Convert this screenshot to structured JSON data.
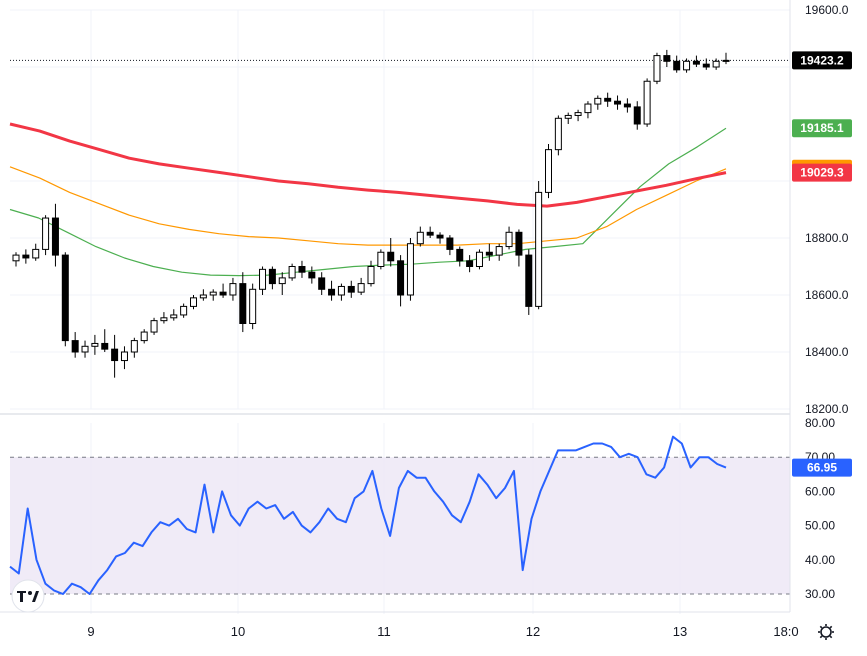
{
  "chart_data": [
    {
      "type": "candlestick",
      "price_axis": {
        "ylim": [
          18200,
          19600
        ],
        "ticks": [
          "19600.0",
          "18800.0",
          "18600.0",
          "18400.0",
          "18200.0"
        ]
      },
      "x_axis": {
        "ticks": [
          "9",
          "10",
          "11",
          "12",
          "13",
          "18:0"
        ]
      },
      "last_price": {
        "value": 19423.2,
        "label": "19423.2",
        "color": "#000000"
      },
      "series": [
        {
          "label": "19185.1",
          "value": 19185.1,
          "color": "#4caf50",
          "values": [
            18900,
            18870,
            18820,
            18770,
            18730,
            18700,
            18680,
            18670,
            18668,
            18670,
            18680,
            18690,
            18700,
            18705,
            18708,
            18715,
            18720,
            18740,
            18760,
            18770,
            18780,
            18880,
            18980,
            19060,
            19120,
            19185.1
          ]
        },
        {
          "label": "19042.9",
          "value": 19042.9,
          "color": "#ff9800",
          "values": [
            19050,
            19010,
            18960,
            18920,
            18880,
            18850,
            18830,
            18815,
            18805,
            18800,
            18790,
            18780,
            18775,
            18775,
            18775,
            18775,
            18780,
            18780,
            18790,
            18800,
            18840,
            18900,
            18950,
            19000,
            19042.9
          ]
        },
        {
          "label": "19029.3",
          "value": 19029.3,
          "color": "#f23645",
          "values": [
            19200,
            19175,
            19140,
            19110,
            19080,
            19060,
            19045,
            19030,
            19015,
            19000,
            18990,
            18978,
            18968,
            18960,
            18950,
            18940,
            18930,
            18918,
            18912,
            18925,
            18945,
            18965,
            18985,
            19008,
            19029.3
          ]
        }
      ],
      "candles": [
        [
          18720,
          18750,
          18700,
          18740
        ],
        [
          18740,
          18760,
          18710,
          18730
        ],
        [
          18730,
          18780,
          18720,
          18760
        ],
        [
          18760,
          18880,
          18740,
          18870
        ],
        [
          18870,
          18920,
          18700,
          18740
        ],
        [
          18740,
          18750,
          18420,
          18440
        ],
        [
          18440,
          18470,
          18380,
          18400
        ],
        [
          18400,
          18440,
          18380,
          18420
        ],
        [
          18420,
          18460,
          18390,
          18430
        ],
        [
          18430,
          18480,
          18400,
          18410
        ],
        [
          18410,
          18460,
          18310,
          18370
        ],
        [
          18370,
          18420,
          18340,
          18400
        ],
        [
          18400,
          18450,
          18380,
          18440
        ],
        [
          18440,
          18480,
          18430,
          18470
        ],
        [
          18470,
          18520,
          18460,
          18510
        ],
        [
          18510,
          18540,
          18500,
          18520
        ],
        [
          18520,
          18550,
          18510,
          18530
        ],
        [
          18530,
          18570,
          18520,
          18560
        ],
        [
          18560,
          18600,
          18550,
          18590
        ],
        [
          18590,
          18620,
          18580,
          18600
        ],
        [
          18600,
          18620,
          18580,
          18610
        ],
        [
          18610,
          18640,
          18590,
          18600
        ],
        [
          18600,
          18660,
          18580,
          18640
        ],
        [
          18640,
          18680,
          18470,
          18500
        ],
        [
          18500,
          18640,
          18480,
          18620
        ],
        [
          18620,
          18700,
          18600,
          18690
        ],
        [
          18690,
          18700,
          18620,
          18640
        ],
        [
          18640,
          18680,
          18600,
          18660
        ],
        [
          18660,
          18710,
          18650,
          18700
        ],
        [
          18700,
          18720,
          18660,
          18680
        ],
        [
          18680,
          18700,
          18640,
          18660
        ],
        [
          18660,
          18680,
          18600,
          18620
        ],
        [
          18620,
          18650,
          18580,
          18600
        ],
        [
          18600,
          18640,
          18580,
          18630
        ],
        [
          18630,
          18650,
          18590,
          18610
        ],
        [
          18610,
          18660,
          18600,
          18640
        ],
        [
          18640,
          18720,
          18630,
          18700
        ],
        [
          18700,
          18760,
          18690,
          18750
        ],
        [
          18750,
          18800,
          18700,
          18720
        ],
        [
          18720,
          18740,
          18560,
          18600
        ],
        [
          18600,
          18800,
          18580,
          18780
        ],
        [
          18780,
          18840,
          18770,
          18820
        ],
        [
          18820,
          18840,
          18800,
          18810
        ],
        [
          18810,
          18820,
          18780,
          18800
        ],
        [
          18800,
          18810,
          18740,
          18760
        ],
        [
          18760,
          18770,
          18700,
          18720
        ],
        [
          18720,
          18740,
          18680,
          18700
        ],
        [
          18700,
          18760,
          18690,
          18750
        ],
        [
          18750,
          18780,
          18720,
          18740
        ],
        [
          18740,
          18780,
          18720,
          18770
        ],
        [
          18770,
          18840,
          18760,
          18820
        ],
        [
          18820,
          18830,
          18700,
          18740
        ],
        [
          18740,
          18760,
          18530,
          18560
        ],
        [
          18560,
          19000,
          18550,
          18960
        ],
        [
          18960,
          19130,
          18940,
          19110
        ],
        [
          19110,
          19230,
          19090,
          19220
        ],
        [
          19220,
          19240,
          19200,
          19230
        ],
        [
          19230,
          19250,
          19210,
          19240
        ],
        [
          19240,
          19280,
          19220,
          19270
        ],
        [
          19270,
          19300,
          19250,
          19290
        ],
        [
          19290,
          19310,
          19260,
          19280
        ],
        [
          19280,
          19300,
          19250,
          19270
        ],
        [
          19270,
          19290,
          19240,
          19260
        ],
        [
          19260,
          19280,
          19180,
          19200
        ],
        [
          19200,
          19360,
          19190,
          19350
        ],
        [
          19350,
          19450,
          19340,
          19440
        ],
        [
          19440,
          19460,
          19400,
          19420
        ],
        [
          19420,
          19440,
          19380,
          19390
        ],
        [
          19390,
          19430,
          19380,
          19420
        ],
        [
          19420,
          19440,
          19400,
          19410
        ],
        [
          19410,
          19430,
          19390,
          19400
        ],
        [
          19400,
          19430,
          19390,
          19420
        ],
        [
          19420,
          19450,
          19410,
          19423.2
        ]
      ]
    },
    {
      "type": "line",
      "name": "rsi",
      "ylim": [
        30,
        80
      ],
      "ticks": [
        "80.00",
        "70.00",
        "60.00",
        "50.00",
        "40.00",
        "30.00"
      ],
      "band": [
        30,
        70
      ],
      "current": {
        "value": 66.95,
        "label": "66.95",
        "color": "#2962ff"
      },
      "values": [
        38,
        36,
        55,
        40,
        33,
        31,
        30,
        33,
        32,
        30,
        34,
        37,
        41,
        42,
        45,
        44,
        48,
        51,
        50,
        52,
        49,
        48,
        62,
        48,
        60,
        53,
        50,
        55,
        57,
        55,
        56,
        52,
        54,
        50,
        48,
        51,
        55,
        52,
        51,
        58,
        60,
        66,
        55,
        47,
        61,
        66,
        64,
        64,
        60,
        57,
        53,
        51,
        57,
        65,
        62,
        58,
        61,
        66,
        37,
        52,
        60,
        66,
        72,
        72,
        72,
        73,
        74,
        74,
        73,
        70,
        71,
        70,
        65,
        64,
        67,
        76,
        74,
        67,
        70,
        70,
        68,
        66.95
      ]
    }
  ]
}
